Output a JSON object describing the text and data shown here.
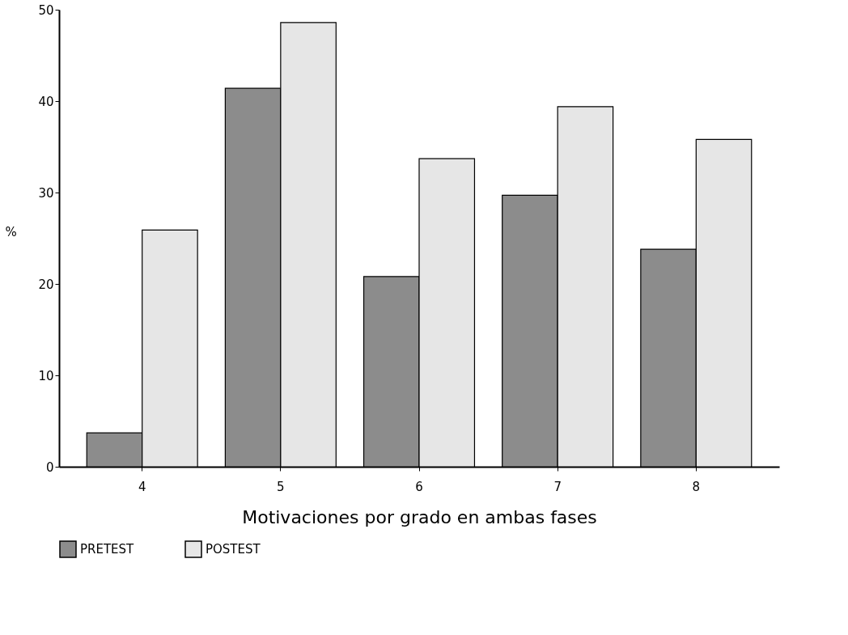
{
  "chart_data": {
    "type": "bar",
    "xlabel": "Motivaciones por grado en ambas fases",
    "ylabel": "%",
    "categories": [
      "4",
      "5",
      "6",
      "7",
      "8"
    ],
    "series": [
      {
        "name": "PRETEST",
        "color": "#8c8c8c",
        "values": [
          3.7,
          41.4,
          20.8,
          29.7,
          23.8
        ]
      },
      {
        "name": "POSTEST",
        "color": "#e6e6e6",
        "values": [
          25.9,
          48.6,
          33.7,
          39.4,
          35.8
        ]
      }
    ],
    "ylim": [
      0,
      50
    ],
    "yticks": [
      0,
      10,
      20,
      30,
      40,
      50
    ],
    "grid": false,
    "legend": "bottom"
  }
}
